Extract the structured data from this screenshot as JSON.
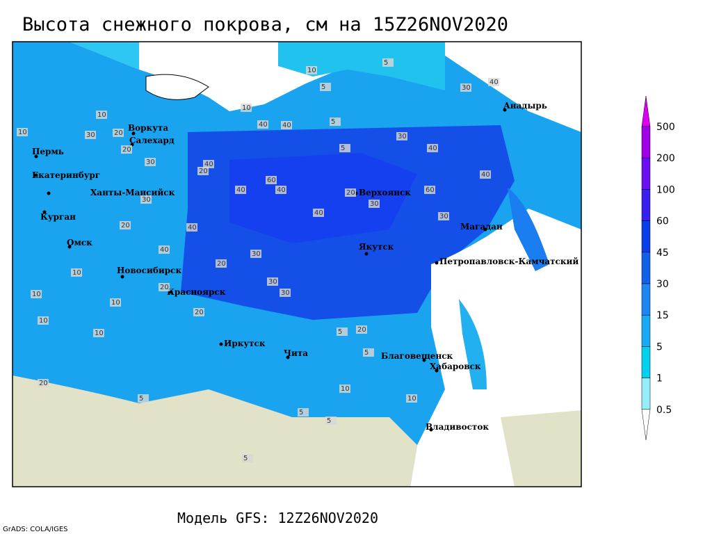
{
  "header": {
    "title": "Высота снежного покрова, см на 15Z26NOV2020"
  },
  "map": {
    "cities": [
      "Воркута",
      "Салехард",
      "Пермь",
      "Екатеринбург",
      "Ханты-Мансийск",
      "Курган",
      "Омск",
      "Новосибирск",
      "Красноярск",
      "Иркутск",
      "Чита",
      "Верхоянск",
      "Якутск",
      "Магадан",
      "Анадырь",
      "Петропавловск-Камчатский",
      "Благовещенск",
      "Хабаровск",
      "Владивосток"
    ],
    "contour_labels": [
      10,
      5,
      5,
      10,
      10,
      30,
      20,
      20,
      10,
      30,
      20,
      40,
      40,
      40,
      60,
      40,
      40,
      40,
      20,
      30,
      60,
      40,
      30,
      40,
      40,
      30,
      30,
      20,
      30,
      40,
      40,
      20,
      30,
      20,
      10,
      20,
      10,
      30,
      30,
      5,
      5,
      10,
      10,
      20,
      5,
      5,
      5,
      10,
      5,
      5,
      20,
      10,
      5,
      10
    ]
  },
  "legend": {
    "items": [
      {
        "label": 500,
        "color": "#dc00f0"
      },
      {
        "label": 200,
        "color": "#a000e8"
      },
      {
        "label": 100,
        "color": "#6a10f0"
      },
      {
        "label": 60,
        "color": "#3a20f0"
      },
      {
        "label": 45,
        "color": "#0a3ee8"
      },
      {
        "label": 30,
        "color": "#1060ea"
      },
      {
        "label": 15,
        "color": "#1e86f2"
      },
      {
        "label": 5,
        "color": "#19aaf6"
      },
      {
        "label": 1,
        "color": "#00d2ee"
      },
      {
        "label": 0.5,
        "color": "#96eefc"
      }
    ],
    "below_color": "#ffffff"
  },
  "footer": {
    "model": "Модель GFS: 12Z26NOV2020",
    "credit": "GrADS: COLA/IGES"
  }
}
